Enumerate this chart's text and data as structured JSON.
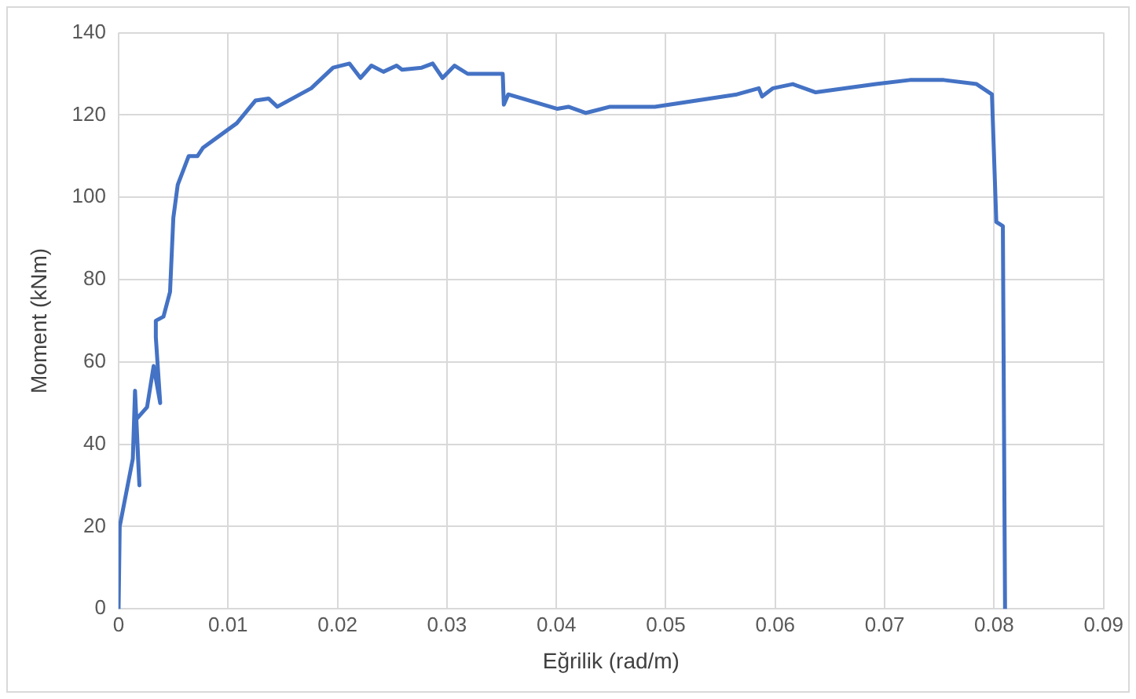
{
  "chart_data": {
    "type": "line",
    "xlabel": "Eğrilik (rad/m)",
    "ylabel": "Moment (kNm)",
    "x": [
      0,
      0.0001,
      0.0013,
      0.0015,
      0.0019,
      0.0016,
      0.0026,
      0.0032,
      0.0038,
      0.0034,
      0.0034,
      0.0041,
      0.0047,
      0.005,
      0.0054,
      0.0064,
      0.0072,
      0.0077,
      0.0108,
      0.0125,
      0.0137,
      0.0145,
      0.0176,
      0.0196,
      0.0211,
      0.0221,
      0.0231,
      0.0242,
      0.0254,
      0.0259,
      0.0277,
      0.0287,
      0.0296,
      0.0307,
      0.0319,
      0.0351,
      0.0352,
      0.0356,
      0.0401,
      0.0411,
      0.0427,
      0.0449,
      0.049,
      0.054,
      0.0565,
      0.0585,
      0.0588,
      0.0598,
      0.0616,
      0.0637,
      0.0692,
      0.0723,
      0.0754,
      0.0784,
      0.0798,
      0.0802,
      0.0808,
      0.081
    ],
    "series": [
      {
        "color": "#4472c4",
        "values": [
          0,
          20,
          36.5,
          53,
          30,
          46,
          49,
          59,
          50,
          66,
          70,
          71,
          77,
          95,
          103,
          110,
          110,
          112,
          118,
          123.5,
          124,
          122,
          126.5,
          131.5,
          132.5,
          129,
          132,
          130.5,
          132,
          131,
          131.5,
          132.5,
          129,
          132,
          130,
          130,
          122.5,
          125,
          121.5,
          122,
          120.5,
          122,
          122,
          124,
          125,
          126.5,
          124.5,
          126.5,
          127.5,
          125.5,
          127.5,
          128.5,
          128.5,
          127.5,
          125,
          94,
          93,
          0
        ]
      }
    ],
    "xlim": [
      0,
      0.09
    ],
    "xticks": [
      0,
      0.01,
      0.02,
      0.03,
      0.04,
      0.05,
      0.06,
      0.07,
      0.08,
      0.09
    ],
    "ylim": [
      0,
      140
    ],
    "yticks": [
      0,
      20,
      40,
      60,
      80,
      100,
      120,
      140
    ],
    "grid": true,
    "marker": "none",
    "line_style": "solid",
    "legend": false
  }
}
